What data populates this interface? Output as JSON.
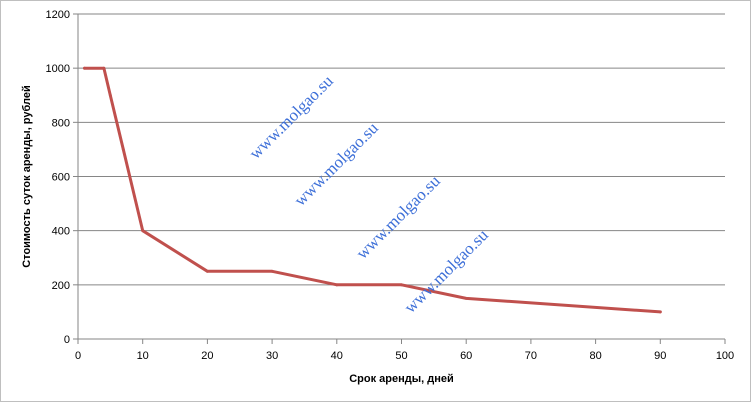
{
  "chart_data": {
    "type": "line",
    "title": "",
    "xlabel": "Срок аренды, дней",
    "ylabel": "Стоимость суток аренды, рублей",
    "xlim": [
      0,
      100
    ],
    "ylim": [
      0,
      1200
    ],
    "xticks": [
      "0",
      "10",
      "20",
      "30",
      "40",
      "50",
      "60",
      "70",
      "80",
      "90",
      "100"
    ],
    "yticks": [
      "0",
      "200",
      "400",
      "600",
      "800",
      "1000",
      "1200"
    ],
    "grid": "horizontal",
    "legend": "none",
    "series": [
      {
        "color": "#c0504d",
        "points": [
          [
            1,
            1000
          ],
          [
            4,
            1000
          ],
          [
            5,
            900
          ],
          [
            7,
            700
          ],
          [
            10,
            400
          ],
          [
            20,
            250
          ],
          [
            30,
            250
          ],
          [
            40,
            200
          ],
          [
            50,
            200
          ],
          [
            60,
            150
          ],
          [
            90,
            100
          ]
        ]
      }
    ],
    "watermarks": [
      "www.molgao.su",
      "www.molgao.su",
      "www.molgao.su",
      "www.molgao.su"
    ],
    "colors": {
      "gridline": "#868686",
      "axis": "#868686",
      "watermark": "#3d6fd8"
    }
  }
}
